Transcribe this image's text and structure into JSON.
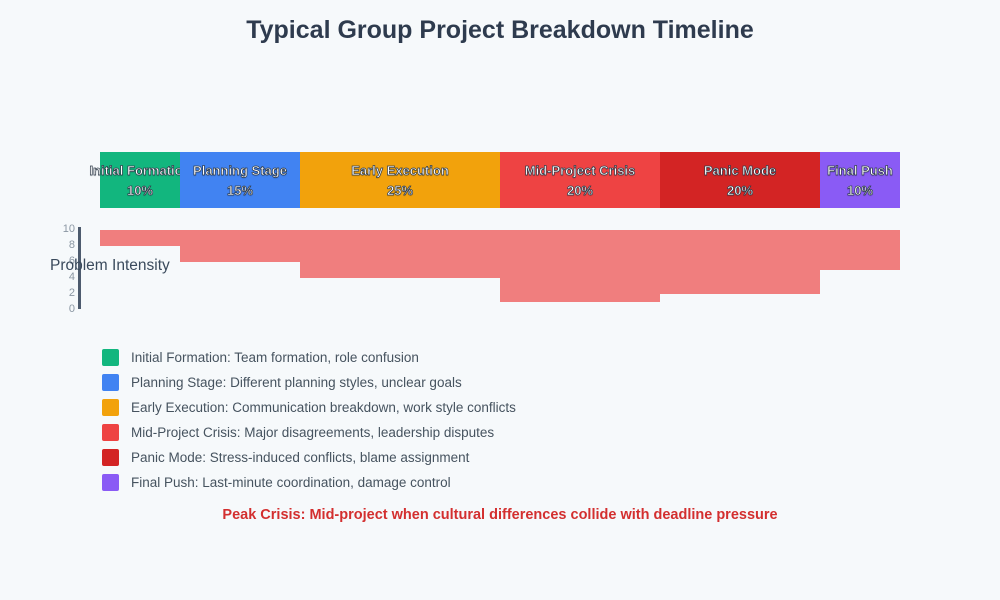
{
  "header": {
    "title": "Typical Group Project Breakdown Timeline"
  },
  "chart_data": {
    "type": "bar",
    "title": "Typical Group Project Breakdown Timeline",
    "orientation": "hanging",
    "phases": [
      {
        "name": "Initial Formation",
        "percent_label": "10%",
        "percent": 10,
        "intensity": 2,
        "color": "#12b67e"
      },
      {
        "name": "Planning Stage",
        "percent_label": "15%",
        "percent": 15,
        "intensity": 4,
        "color": "#4183f2"
      },
      {
        "name": "Early Execution",
        "percent_label": "25%",
        "percent": 25,
        "intensity": 6,
        "color": "#f2a20c"
      },
      {
        "name": "Mid-Project Crisis",
        "percent_label": "20%",
        "percent": 20,
        "intensity": 9,
        "color": "#ee4343"
      },
      {
        "name": "Panic Mode",
        "percent_label": "20%",
        "percent": 20,
        "intensity": 8,
        "color": "#d32424"
      },
      {
        "name": "Final Push",
        "percent_label": "10%",
        "percent": 10,
        "intensity": 5,
        "color": "#8a5bf5"
      }
    ],
    "intensity_bar_color": "#f07e7e",
    "yaxis": {
      "label": "Problem Intensity",
      "ticks": [
        "10",
        "8",
        "6",
        "4",
        "2",
        "0"
      ],
      "range": [
        0,
        10
      ]
    },
    "annotation": {
      "text": "Peak Crisis: Mid-project when cultural differences collide with deadline pressure",
      "color": "#d32f2f"
    }
  },
  "legend": {
    "items": [
      {
        "color": "#12b67e",
        "label": "Initial Formation: Team formation, role confusion"
      },
      {
        "color": "#4183f2",
        "label": "Planning Stage: Different planning styles, unclear goals"
      },
      {
        "color": "#f2a20c",
        "label": "Early Execution: Communication breakdown, work style conflicts"
      },
      {
        "color": "#ee4343",
        "label": "Mid-Project Crisis: Major disagreements, leadership disputes"
      },
      {
        "color": "#d32424",
        "label": "Panic Mode: Stress-induced conflicts, blame assignment"
      },
      {
        "color": "#8a5bf5",
        "label": "Final Push: Last-minute coordination, damage control"
      }
    ]
  }
}
